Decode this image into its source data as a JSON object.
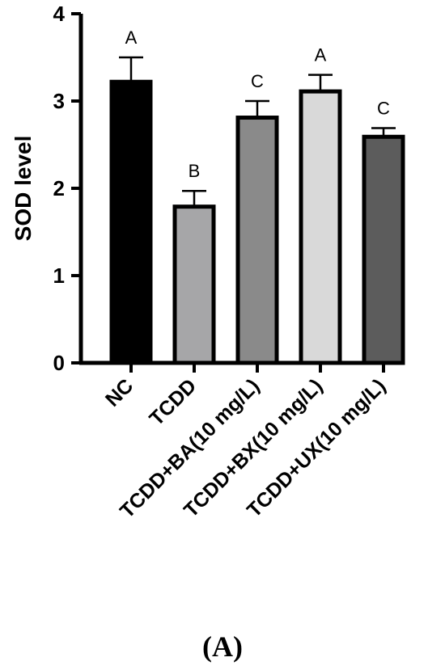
{
  "chart_data": {
    "type": "bar",
    "categories": [
      "NC",
      "TCDD",
      "TCDD+BA(10 mg/L)",
      "TCDD+BX(10 mg/L)",
      "TCDD+UX(10 mg/L)"
    ],
    "values": [
      3.22,
      1.79,
      2.81,
      3.11,
      2.59
    ],
    "error_upper": [
      0.28,
      0.18,
      0.19,
      0.19,
      0.1
    ],
    "significance_letters": [
      "A",
      "B",
      "C",
      "A",
      "C"
    ],
    "bar_colors": [
      "#000000",
      "#a6a6a8",
      "#8a8a8a",
      "#d9d9d9",
      "#5c5c5c"
    ],
    "title": "",
    "xlabel": "",
    "ylabel": "SOD level",
    "ylim": [
      0,
      4
    ],
    "yticks": [
      "0",
      "1",
      "2",
      "3",
      "4"
    ],
    "grid": false,
    "panel_label_open": "(",
    "panel_label_letter": "A",
    "panel_label_close": ")"
  }
}
